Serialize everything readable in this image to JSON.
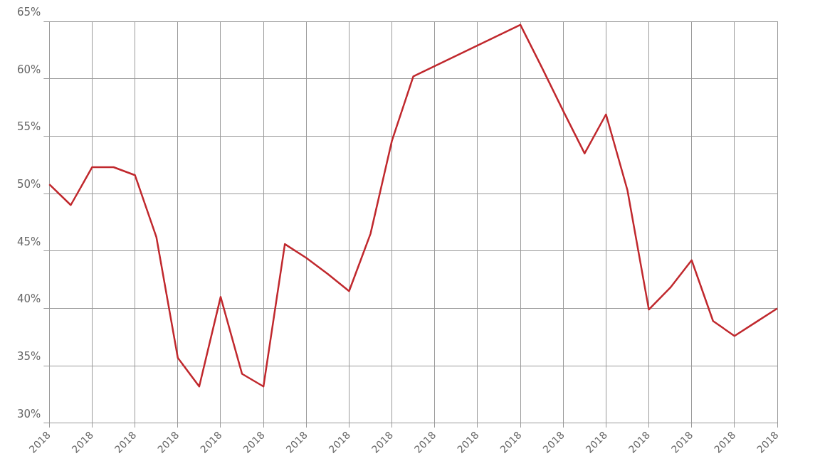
{
  "chart_data": {
    "type": "line",
    "categories": [
      "2018",
      null,
      "2018",
      null,
      "2018",
      null,
      "2018",
      null,
      "2018",
      null,
      "2018",
      null,
      "2018",
      null,
      "2018",
      null,
      "2018",
      null,
      "2018",
      null,
      "2018",
      null,
      "2018",
      null,
      "2018",
      null,
      "2018",
      null,
      "2018",
      null,
      "2018",
      null,
      "2018",
      null,
      "2018"
    ],
    "series": [
      {
        "color": "#c0282d",
        "values": [
          50.8,
          49.0,
          52.3,
          52.3,
          51.6,
          46.2,
          35.7,
          33.2,
          41.0,
          34.3,
          33.2,
          45.6,
          44.4,
          43.0,
          41.5,
          46.5,
          54.6,
          60.2,
          61.1,
          62.0,
          62.9,
          63.8,
          64.7,
          61.0,
          57.2,
          53.5,
          56.9,
          50.3,
          39.9,
          41.8,
          44.2,
          38.9,
          37.6,
          38.8,
          40.0
        ]
      }
    ],
    "ylim": [
      30,
      65
    ],
    "yticks": [
      {
        "value": 30,
        "label": "30%"
      },
      {
        "value": 35,
        "label": "35%"
      },
      {
        "value": 40,
        "label": "40%"
      },
      {
        "value": 45,
        "label": "45%"
      },
      {
        "value": 50,
        "label": "50%"
      },
      {
        "value": 55,
        "label": "55%"
      },
      {
        "value": 60,
        "label": "60%"
      },
      {
        "value": 65,
        "label": "65%"
      }
    ],
    "grid": true,
    "marker": "none"
  }
}
